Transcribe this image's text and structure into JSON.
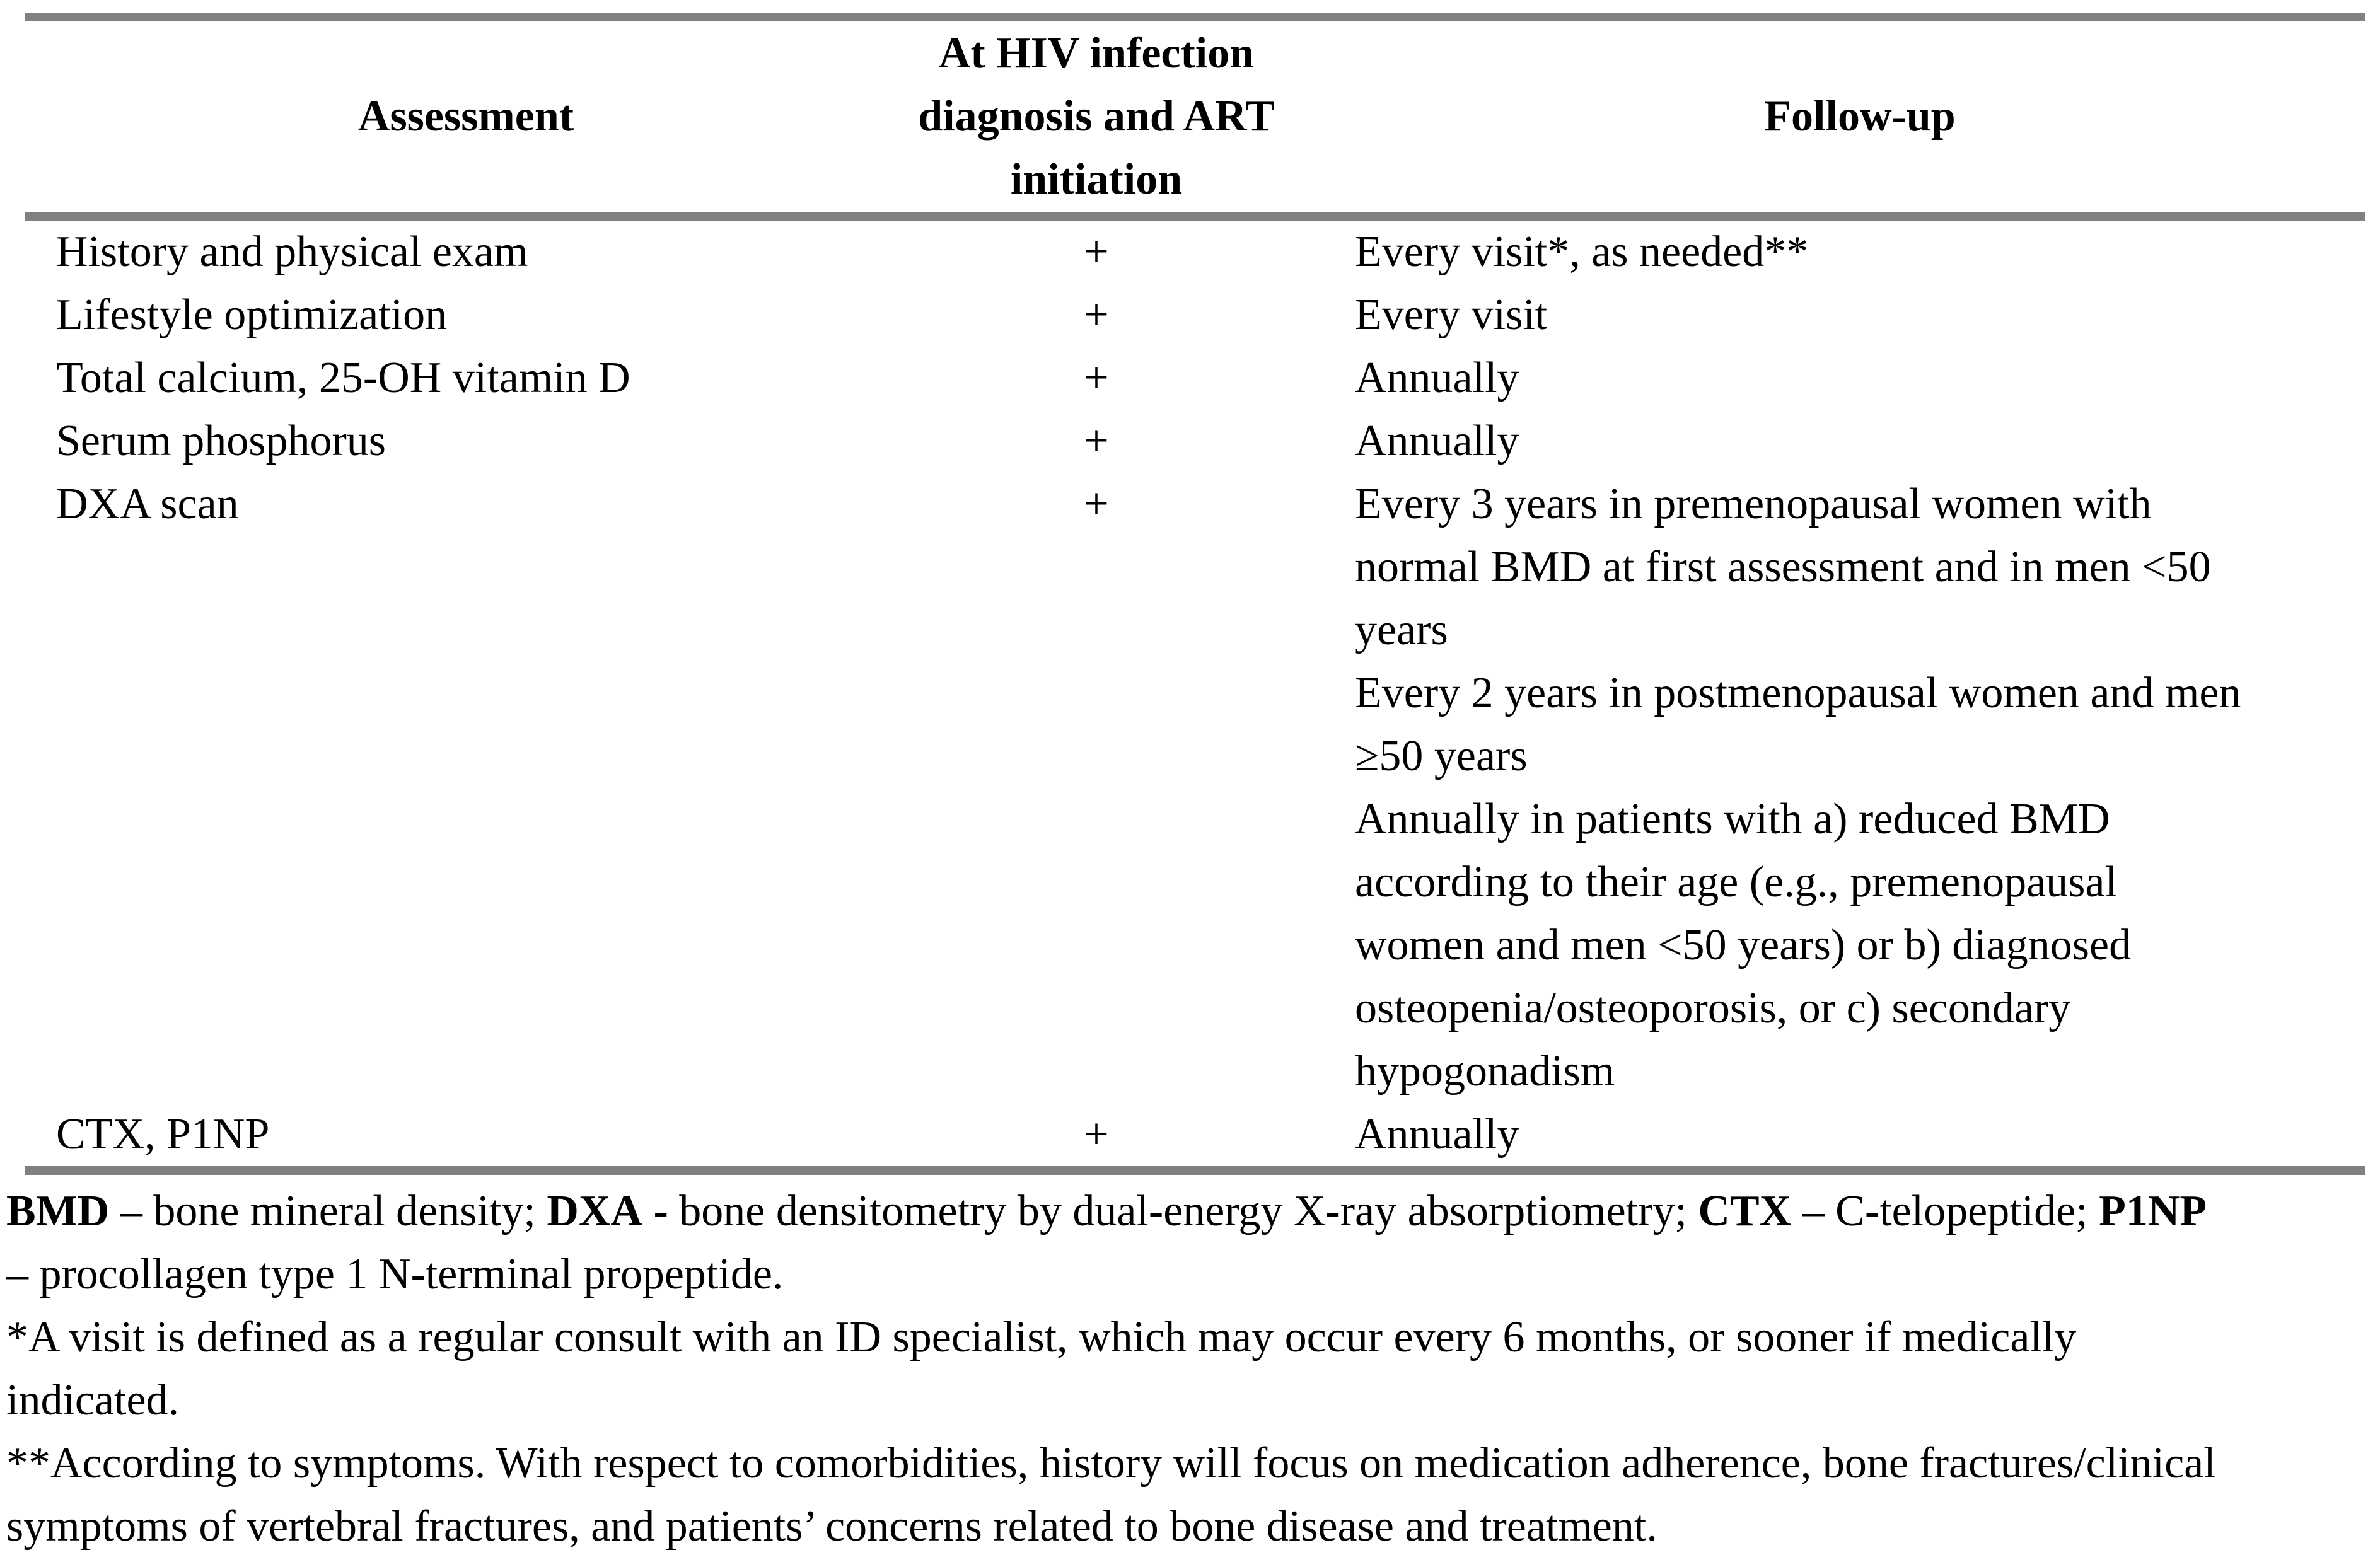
{
  "table": {
    "columns": [
      "Assessment",
      "At HIV infection\ndiagnosis and ART\ninitiation",
      "Follow-up"
    ],
    "rows": [
      {
        "assessment": "History and physical exam",
        "at_diagnosis": "+",
        "followup": [
          "Every visit*, as needed**"
        ]
      },
      {
        "assessment": "Lifestyle optimization",
        "at_diagnosis": "+",
        "followup": [
          "Every visit"
        ]
      },
      {
        "assessment": "Total calcium, 25-OH vitamin D",
        "at_diagnosis": "+",
        "followup": [
          "Annually"
        ]
      },
      {
        "assessment": "Serum phosphorus",
        "at_diagnosis": "+",
        "followup": [
          "Annually"
        ]
      },
      {
        "assessment": "DXA scan",
        "at_diagnosis": "+",
        "followup": [
          "Every 3 years in premenopausal women with normal BMD at first assessment and in men <50 years",
          "Every 2 years in postmenopausal women and men ≥50 years",
          "Annually in patients with a) reduced BMD according to their age (e.g., premenopausal women and men <50 years) or b) diagnosed osteopenia/osteoporosis, or c) secondary hypogonadism"
        ]
      },
      {
        "assessment": "CTX, P1NP",
        "at_diagnosis": "+",
        "followup": [
          "Annually"
        ]
      }
    ]
  },
  "footnotes": {
    "abbreviations": [
      {
        "text": "BMD",
        "bold": true
      },
      {
        "text": " – bone mineral density; ",
        "bold": false
      },
      {
        "text": "DXA",
        "bold": true
      },
      {
        "text": " - bone densitometry by dual-energy X-ray absorptiometry; ",
        "bold": false
      },
      {
        "text": "CTX",
        "bold": true
      },
      {
        "text": " – C-telopeptide; ",
        "bold": false
      },
      {
        "text": "P1NP",
        "bold": true
      },
      {
        "text": " – procollagen type 1 N-terminal propeptide.",
        "bold": false
      }
    ],
    "notes": [
      "*A visit is defined as a regular consult with an ID specialist, which may occur every 6 months, or sooner if medically indicated.",
      "**According to symptoms. With respect to comorbidities, history will focus on medication adherence, bone fractures/clinical symptoms of vertebral fractures, and patients’ concerns related to bone disease and treatment."
    ]
  },
  "colors": {
    "rule": "#808080",
    "text": "#000000",
    "background": "#ffffff"
  }
}
